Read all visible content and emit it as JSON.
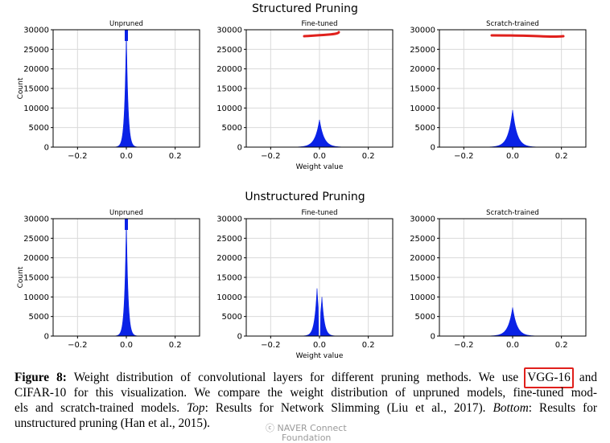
{
  "sections": [
    {
      "title": "Structured Pruning"
    },
    {
      "title": "Unstructured Pruning"
    }
  ],
  "ylabel": "Count",
  "xlabel": "Weight value",
  "y_ticks": [
    "0",
    "5000",
    "10000",
    "15000",
    "20000",
    "25000",
    "30000"
  ],
  "x_ticks": [
    "−0.2",
    "0.0",
    "0.2"
  ],
  "chart_data": [
    {
      "type": "area",
      "section": "Structured Pruning",
      "title": "Unpruned",
      "xlim": [
        -0.3,
        0.3
      ],
      "ylim": [
        0,
        30000
      ],
      "peak_x": [
        0.0
      ],
      "peak_y": [
        30000
      ],
      "clipped": true,
      "color": "#0a22e6",
      "grid": true
    },
    {
      "type": "area",
      "section": "Structured Pruning",
      "title": "Fine-tuned",
      "xlim": [
        -0.3,
        0.3
      ],
      "ylim": [
        0,
        30000
      ],
      "peak_x": [
        0.0
      ],
      "peak_y": [
        7000
      ],
      "color": "#0a22e6",
      "grid": true
    },
    {
      "type": "area",
      "section": "Structured Pruning",
      "title": "Scratch-trained",
      "xlim": [
        -0.3,
        0.3
      ],
      "ylim": [
        0,
        30000
      ],
      "peak_x": [
        0.0
      ],
      "peak_y": [
        9500
      ],
      "color": "#0a22e6",
      "grid": true
    },
    {
      "type": "area",
      "section": "Unstructured Pruning",
      "title": "Unpruned",
      "xlim": [
        -0.3,
        0.3
      ],
      "ylim": [
        0,
        30000
      ],
      "peak_x": [
        0.0
      ],
      "peak_y": [
        30000
      ],
      "clipped": true,
      "color": "#0a22e6",
      "grid": true
    },
    {
      "type": "area",
      "section": "Unstructured Pruning",
      "title": "Fine-tuned",
      "xlim": [
        -0.3,
        0.3
      ],
      "ylim": [
        0,
        30000
      ],
      "peak_x": [
        -0.01,
        0.01
      ],
      "peak_y": [
        12200,
        10000
      ],
      "gap_around_zero": true,
      "color": "#0a22e6",
      "grid": true
    },
    {
      "type": "area",
      "section": "Unstructured Pruning",
      "title": "Scratch-trained",
      "xlim": [
        -0.3,
        0.3
      ],
      "ylim": [
        0,
        30000
      ],
      "peak_x": [
        0.0
      ],
      "peak_y": [
        7300
      ],
      "color": "#0a22e6",
      "grid": true
    }
  ],
  "caption": {
    "figure_label": "Figure 8:",
    "line1_text": "Weight distribution of convolutional layers for different pruning methods.  We use",
    "model_name": "VGG-16",
    "line1_end": "and",
    "line2": "CIFAR-10 for this visualization.  We compare the weight distribution of unpruned models, fine-tuned mod-",
    "line3_start": "els and scratch-trained models.",
    "top_label": "Top",
    "line3_mid": ": Results for Network Slimming (Liu et al., 2017).",
    "bottom_label": "Bottom",
    "line3_end": ": Results for",
    "line4": "unstructured pruning (Han et al., 2015)."
  },
  "watermark": {
    "line1": "ⓒ  NAVER Connect",
    "line2": "Foundation"
  },
  "annotation_color": "#e0201c"
}
